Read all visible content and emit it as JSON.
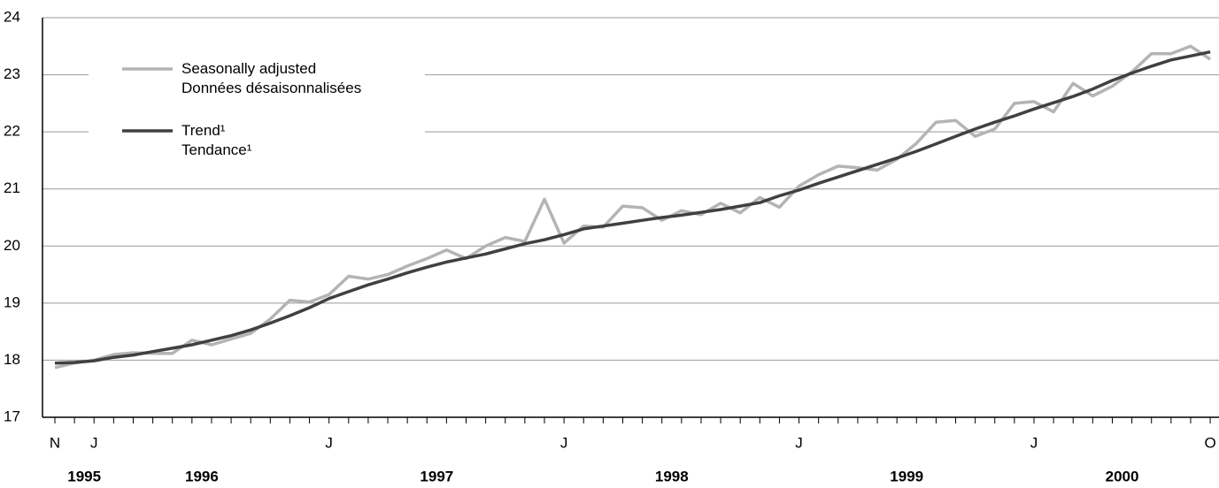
{
  "chart_data": {
    "type": "line",
    "categories": [
      "N",
      null,
      "J",
      null,
      null,
      null,
      null,
      null,
      null,
      null,
      null,
      null,
      null,
      null,
      "J",
      null,
      null,
      null,
      null,
      null,
      null,
      null,
      null,
      null,
      null,
      null,
      "J",
      null,
      null,
      null,
      null,
      null,
      null,
      null,
      null,
      null,
      null,
      null,
      "J",
      null,
      null,
      null,
      null,
      null,
      null,
      null,
      null,
      null,
      null,
      null,
      "J",
      null,
      null,
      null,
      null,
      null,
      null,
      null,
      null,
      "O"
    ],
    "year_labels": [
      "1995",
      "1996",
      "1997",
      "1998",
      "1999",
      "2000"
    ],
    "series": [
      {
        "name": "Seasonally adjusted\nDonnées désaisonnalisées",
        "color": "#b4b4b4",
        "values": [
          17.87,
          17.95,
          18.0,
          18.1,
          18.13,
          18.12,
          18.12,
          18.35,
          18.27,
          18.37,
          18.47,
          18.72,
          19.05,
          19.02,
          19.15,
          19.47,
          19.42,
          19.5,
          19.65,
          19.78,
          19.93,
          19.78,
          20.0,
          20.15,
          20.08,
          20.82,
          20.05,
          20.35,
          20.33,
          20.7,
          20.67,
          20.45,
          20.62,
          20.55,
          20.75,
          20.58,
          20.85,
          20.68,
          21.05,
          21.25,
          21.4,
          21.37,
          21.33,
          21.52,
          21.8,
          22.17,
          22.2,
          21.92,
          22.05,
          22.5,
          22.53,
          22.35,
          22.85,
          22.63,
          22.8,
          23.05,
          23.37,
          23.37,
          23.5,
          23.27
        ]
      },
      {
        "name": "Trend¹\nTendance¹",
        "color": "#404040",
        "values": [
          17.95,
          17.96,
          17.99,
          18.05,
          18.09,
          18.15,
          18.21,
          18.27,
          18.35,
          18.43,
          18.53,
          18.65,
          18.78,
          18.92,
          19.08,
          19.2,
          19.32,
          19.42,
          19.53,
          19.63,
          19.72,
          19.79,
          19.86,
          19.95,
          20.04,
          20.11,
          20.2,
          20.3,
          20.35,
          20.4,
          20.45,
          20.5,
          20.54,
          20.59,
          20.64,
          20.7,
          20.76,
          20.88,
          20.98,
          21.1,
          21.21,
          21.32,
          21.43,
          21.54,
          21.66,
          21.79,
          21.92,
          22.05,
          22.17,
          22.28,
          22.4,
          22.51,
          22.62,
          22.75,
          22.9,
          23.03,
          23.15,
          23.26,
          23.33,
          23.4
        ]
      }
    ],
    "ylim": [
      17,
      24
    ],
    "yticks": [
      17,
      18,
      19,
      20,
      21,
      22,
      23,
      24
    ],
    "grid": true,
    "legend": "top-left"
  }
}
